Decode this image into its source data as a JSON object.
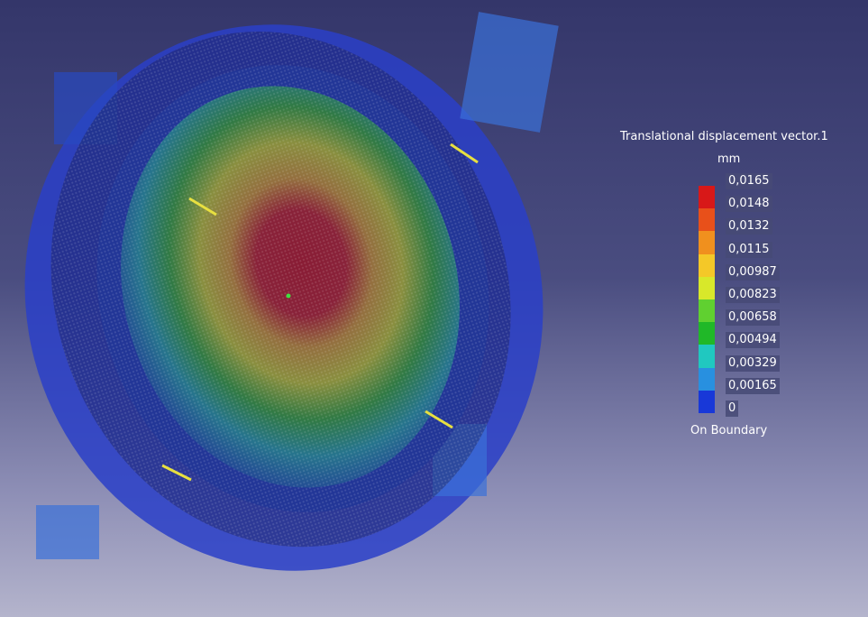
{
  "legend": {
    "title": "Translational displacement vector.1",
    "unit": "mm",
    "labels": [
      "0,0165",
      "0,0148",
      "0,0132",
      "0,0115",
      "0,00987",
      "0,00823",
      "0,00658",
      "0,00494",
      "0,00329",
      "0,00165",
      "0"
    ],
    "colors": [
      "#d81818",
      "#e8501a",
      "#f0901e",
      "#f4c828",
      "#d8e82a",
      "#60d030",
      "#20b828",
      "#20c8c0",
      "#2890e0",
      "#1838d8"
    ],
    "footer": "On Boundary"
  }
}
